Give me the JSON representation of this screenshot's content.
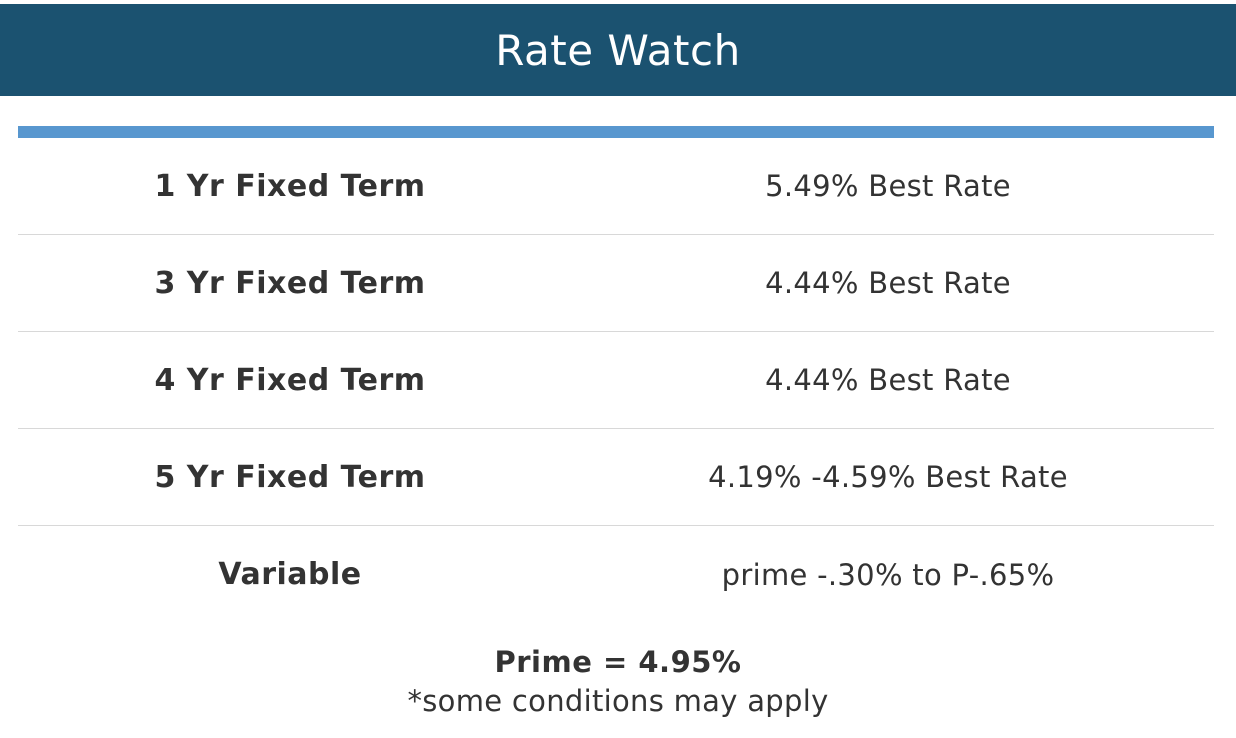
{
  "header": {
    "title": "Rate Watch",
    "background_color": "#1b5270",
    "accent_color": "#5897cf"
  },
  "rates": [
    {
      "term": "1 Yr Fixed Term",
      "rate": "5.49% Best Rate"
    },
    {
      "term": "3 Yr Fixed Term",
      "rate": "4.44% Best Rate"
    },
    {
      "term": "4 Yr Fixed Term",
      "rate": "4.44% Best Rate"
    },
    {
      "term": "5 Yr Fixed Term",
      "rate": "4.19% -4.59% Best Rate"
    },
    {
      "term": "Variable",
      "rate": "prime -.30% to P-.65%"
    }
  ],
  "footer": {
    "prime": "Prime = 4.95%",
    "conditions": "*some conditions may apply"
  }
}
